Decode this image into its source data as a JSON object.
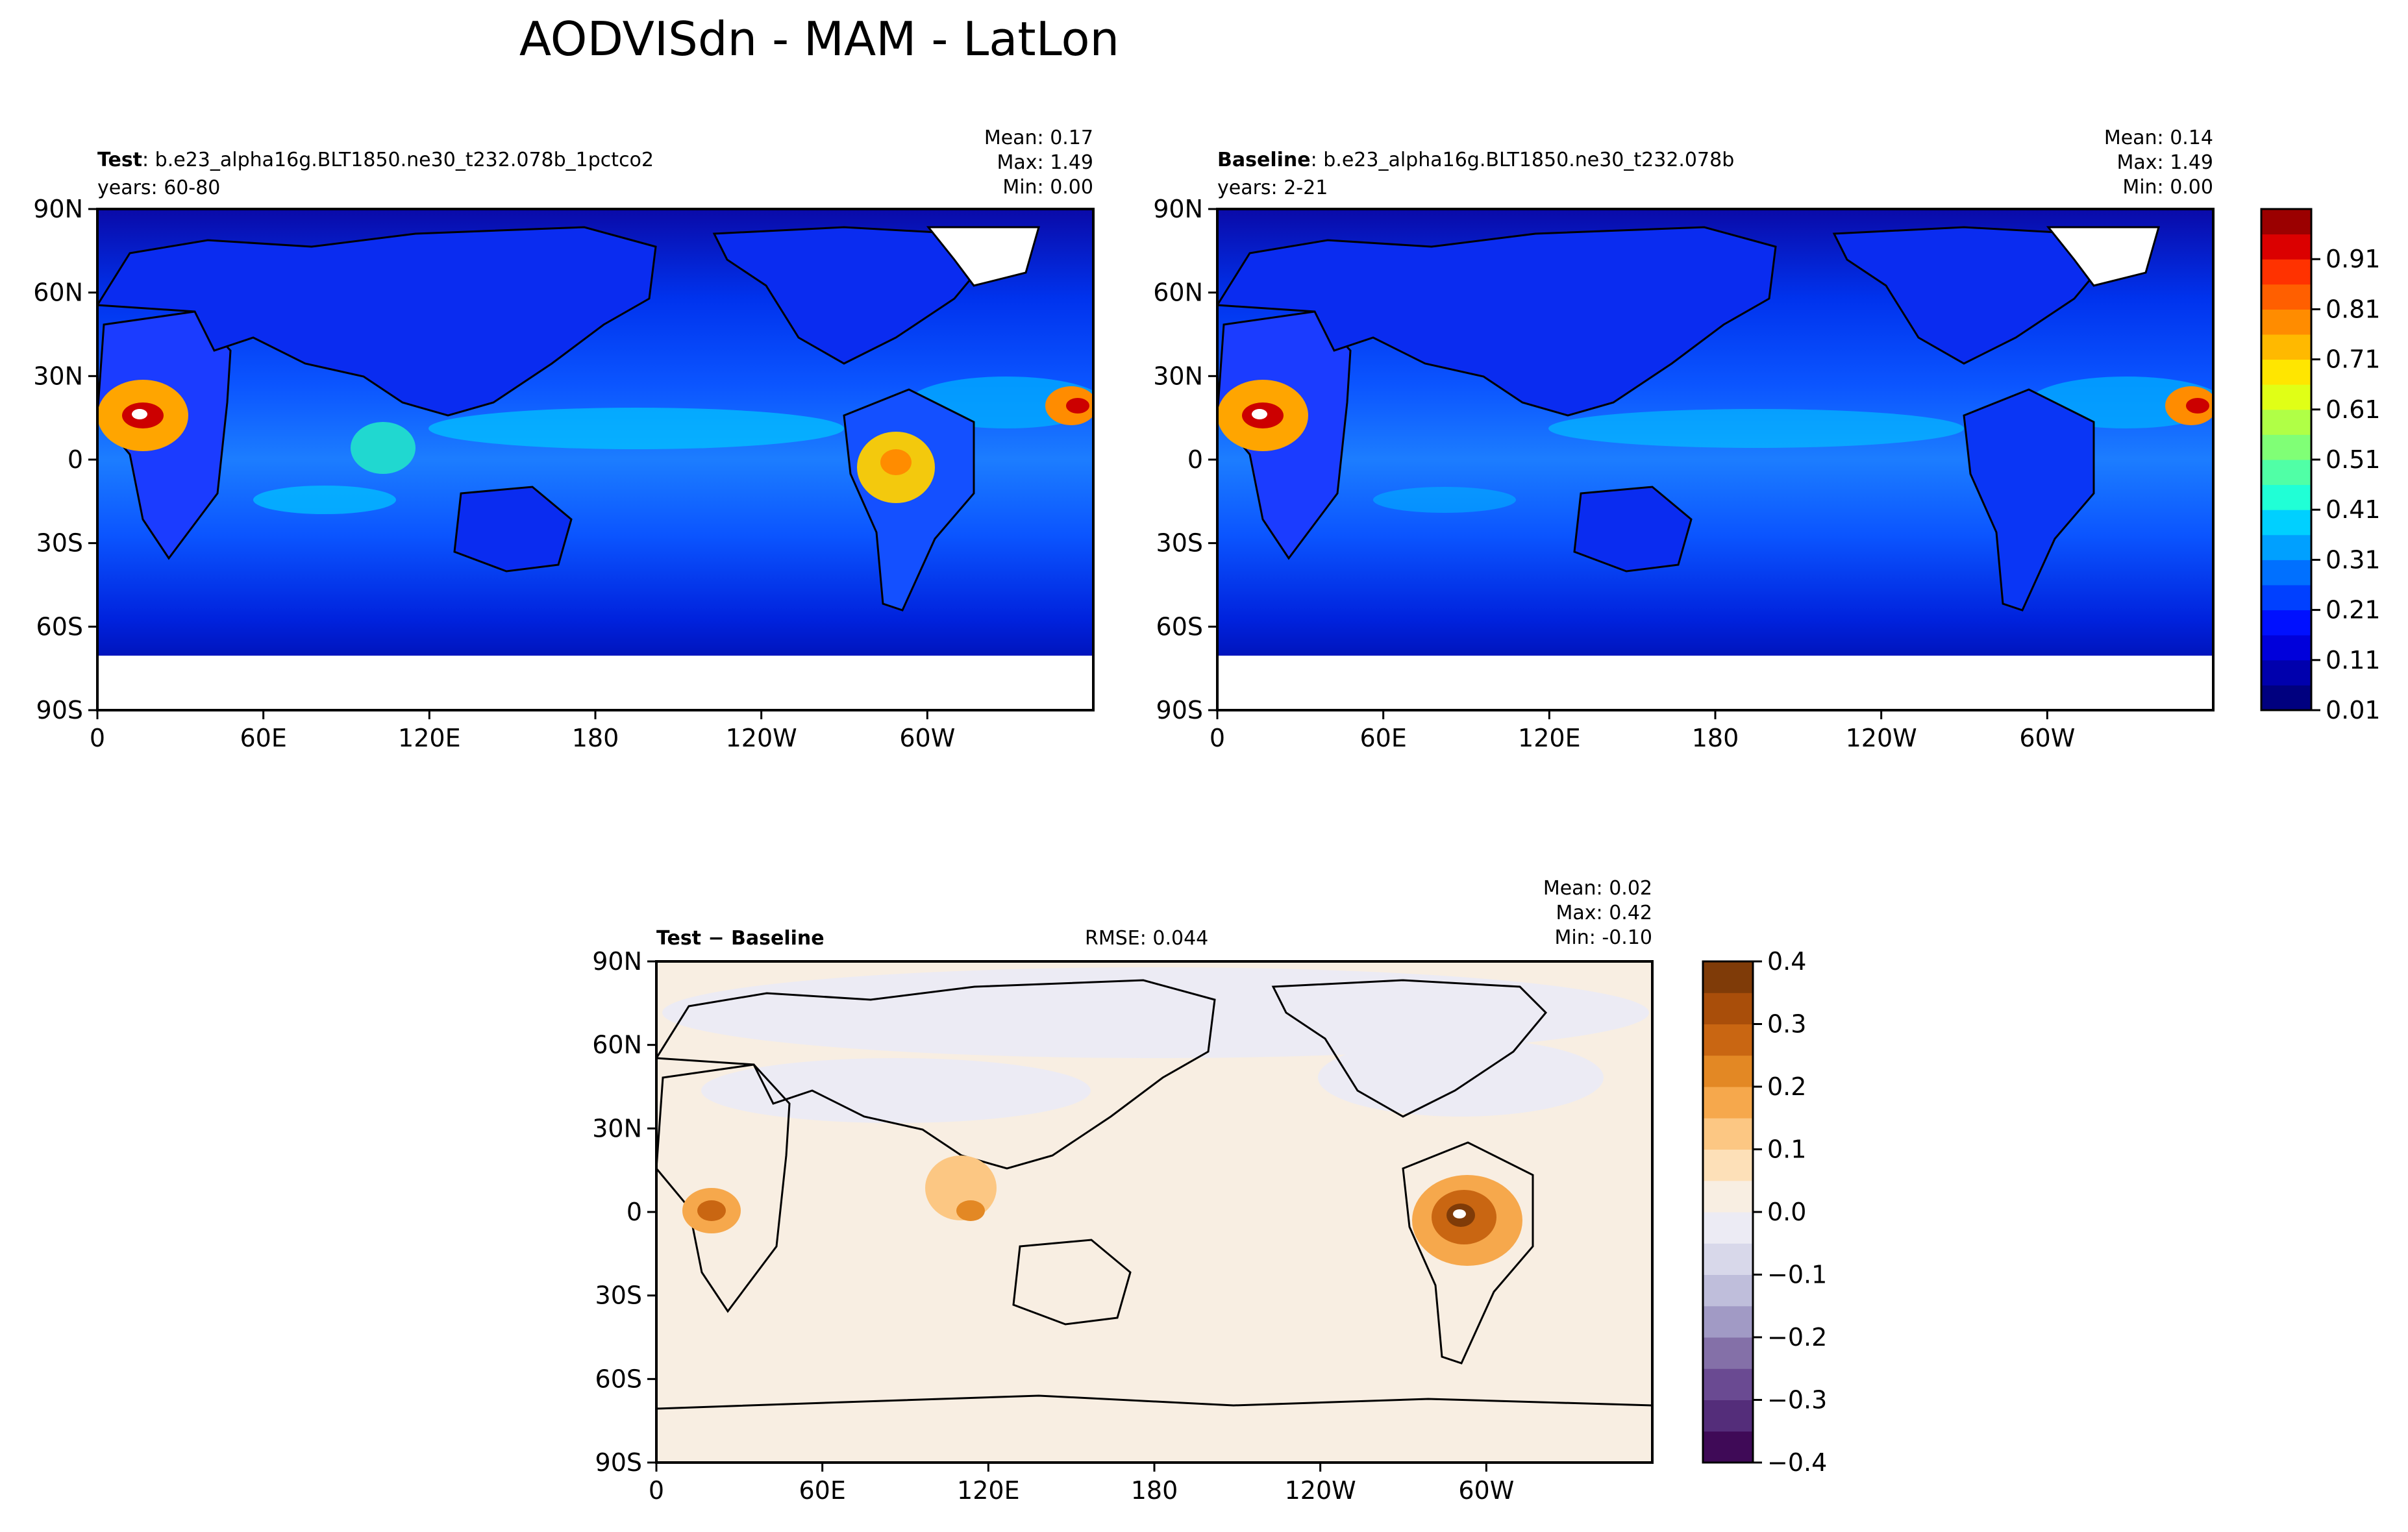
{
  "chart_data": {
    "type": "heatmap",
    "title": "AODVISdn - MAM - LatLon",
    "x_ticks": [
      "0",
      "60E",
      "120E",
      "180",
      "120W",
      "60W"
    ],
    "y_ticks": [
      "90N",
      "60N",
      "30N",
      "0",
      "30S",
      "60S",
      "90S"
    ],
    "panels": [
      {
        "id": "test",
        "label_bold": "Test",
        "label_rest": ": b.e23_alpha16g.BLT1850.ne30_t232.078b_1pctco2",
        "years": "years: 60-80",
        "stats": {
          "mean": "Mean:  0.17",
          "max": "Max:  1.49",
          "min": "Min:  0.00"
        }
      },
      {
        "id": "baseline",
        "label_bold": "Baseline",
        "label_rest": ": b.e23_alpha16g.BLT1850.ne30_t232.078b",
        "years": "years: 2-21",
        "stats": {
          "mean": "Mean:  0.14",
          "max": "Max:  1.49",
          "min": "Min:  0.00"
        }
      },
      {
        "id": "diff",
        "label_bold": "Test − Baseline",
        "label_rest": "",
        "rmse": "RMSE: 0.044",
        "stats": {
          "mean": "Mean:  0.02",
          "max": "Max:  0.42",
          "min": "Min: -0.10"
        }
      }
    ],
    "colorbar_main": {
      "ticks": [
        "0.91",
        "0.81",
        "0.71",
        "0.61",
        "0.51",
        "0.41",
        "0.31",
        "0.21",
        "0.11",
        "0.01"
      ],
      "range": [
        0.01,
        1.01
      ],
      "colors": [
        "#00007f",
        "#0000ad",
        "#0000db",
        "#0010ff",
        "#0040ff",
        "#0070ff",
        "#00a0ff",
        "#00d0ff",
        "#20ffd6",
        "#50ffa6",
        "#80ff76",
        "#b0ff46",
        "#e0ff16",
        "#ffe600",
        "#ffb900",
        "#ff8c00",
        "#ff5f00",
        "#ff3200",
        "#db0000",
        "#9b0000"
      ]
    },
    "colorbar_diff": {
      "ticks": [
        "0.4",
        "0.3",
        "0.2",
        "0.1",
        "0.0",
        "−0.1",
        "−0.2",
        "−0.3",
        "−0.4"
      ],
      "range": [
        -0.4,
        0.4
      ],
      "colors": [
        "#3f0a57",
        "#542d7a",
        "#6a4a92",
        "#8470a8",
        "#a19ac5",
        "#bfbedb",
        "#d8d8ea",
        "#ecebf4",
        "#f8eee2",
        "#fde0b8",
        "#fcc783",
        "#f6a84c",
        "#e38824",
        "#c96612",
        "#a94e0a",
        "#7f3b08"
      ]
    }
  }
}
